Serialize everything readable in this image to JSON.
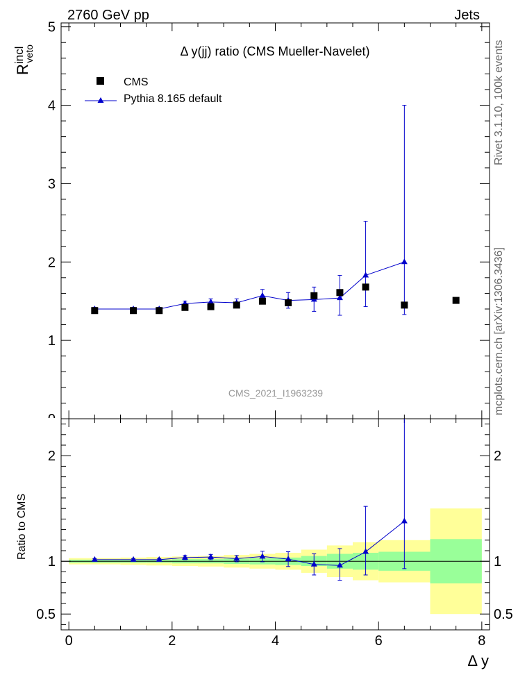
{
  "header": {
    "left": "2760 GeV pp",
    "right": "Jets"
  },
  "side_labels": {
    "rivet": "Rivet 3.1.10,  100k events",
    "mcplots": "mcplots.cern.ch [arXiv:1306.3436]"
  },
  "colors": {
    "mc": "#0000cc",
    "data": "#000000",
    "band_inner": "#99ff99",
    "band_outer": "#ffff99",
    "watermark": "#999999"
  },
  "chart_data": [
    {
      "type": "scatter",
      "title": "Δ y(jj) ratio (CMS Mueller-Navelet)",
      "ylabel": "R^incl_veto",
      "ylabel_main": "R",
      "ylabel_sup": "incl",
      "ylabel_sub": "veto",
      "xlabel": "",
      "xlim": [
        -0.15,
        8.15
      ],
      "ylim": [
        0,
        5.05
      ],
      "yticks": [
        1,
        2,
        3,
        4,
        5
      ],
      "ytick_labels": [
        "1",
        "2",
        "3",
        "4",
        "5"
      ],
      "bottom_partial_label": "0",
      "watermark": "CMS_2021_I1963239",
      "legend": {
        "position": "top-left",
        "entries": [
          "CMS",
          "Pythia 8.165 default"
        ]
      },
      "series": [
        {
          "name": "CMS",
          "marker": "square",
          "x": [
            0.5,
            1.25,
            1.75,
            2.25,
            2.75,
            3.25,
            3.75,
            4.25,
            4.75,
            5.25,
            5.75,
            6.5,
            7.5
          ],
          "y": [
            1.38,
            1.38,
            1.38,
            1.42,
            1.43,
            1.45,
            1.5,
            1.48,
            1.57,
            1.61,
            1.68,
            1.45,
            1.51
          ]
        },
        {
          "name": "Pythia 8.165 default",
          "marker": "triangle",
          "x": [
            0.5,
            1.25,
            1.75,
            2.25,
            2.75,
            3.25,
            3.75,
            4.25,
            4.75,
            5.25,
            5.75,
            6.5
          ],
          "y": [
            1.4,
            1.4,
            1.4,
            1.47,
            1.49,
            1.48,
            1.57,
            1.51,
            1.52,
            1.54,
            1.83,
            2.0
          ],
          "err_low": [
            0.02,
            0.02,
            0.02,
            0.03,
            0.04,
            0.05,
            0.08,
            0.1,
            0.15,
            0.22,
            0.4,
            0.67
          ],
          "err_high": [
            0.02,
            0.02,
            0.02,
            0.03,
            0.04,
            0.05,
            0.08,
            0.1,
            0.16,
            0.29,
            0.69,
            2.0
          ]
        }
      ]
    },
    {
      "type": "scatter",
      "title": "",
      "xlabel": "Δ y",
      "ylabel": "Ratio to CMS",
      "xlim": [
        -0.15,
        8.15
      ],
      "ylim": [
        0.35,
        2.35
      ],
      "xticks": [
        0,
        2,
        4,
        6,
        8
      ],
      "xtick_labels": [
        "0",
        "2",
        "4",
        "6",
        "8"
      ],
      "yticks": [
        0.5,
        1,
        2
      ],
      "ytick_labels": [
        "0.5",
        "1",
        "2"
      ],
      "bands": {
        "x_edges": [
          0,
          1,
          1.5,
          2,
          2.5,
          3,
          3.5,
          4,
          4.5,
          5,
          5.5,
          6,
          7,
          8
        ],
        "inner_low": [
          0.985,
          0.985,
          0.985,
          0.98,
          0.98,
          0.975,
          0.97,
          0.965,
          0.955,
          0.93,
          0.92,
          0.91,
          0.79
        ],
        "inner_high": [
          1.015,
          1.015,
          1.015,
          1.02,
          1.02,
          1.025,
          1.03,
          1.035,
          1.05,
          1.07,
          1.08,
          1.09,
          1.21
        ],
        "outer_low": [
          0.97,
          0.965,
          0.96,
          0.955,
          0.95,
          0.94,
          0.93,
          0.92,
          0.89,
          0.85,
          0.82,
          0.8,
          0.5
        ],
        "outer_high": [
          1.03,
          1.035,
          1.04,
          1.045,
          1.05,
          1.06,
          1.07,
          1.08,
          1.11,
          1.15,
          1.18,
          1.2,
          1.5
        ]
      },
      "series": [
        {
          "name": "Pythia 8.165 default / CMS",
          "marker": "triangle",
          "x": [
            0.5,
            1.25,
            1.75,
            2.25,
            2.75,
            3.25,
            3.75,
            4.25,
            4.75,
            5.25,
            5.75,
            6.5
          ],
          "y": [
            1.015,
            1.015,
            1.015,
            1.035,
            1.04,
            1.025,
            1.045,
            1.02,
            0.97,
            0.96,
            1.09,
            1.38
          ],
          "err_low": [
            0.01,
            0.01,
            0.01,
            0.02,
            0.025,
            0.03,
            0.05,
            0.07,
            0.1,
            0.14,
            0.22,
            0.45
          ],
          "err_high": [
            0.01,
            0.01,
            0.01,
            0.02,
            0.025,
            0.03,
            0.05,
            0.07,
            0.1,
            0.16,
            0.43,
            1.0
          ]
        }
      ]
    }
  ]
}
